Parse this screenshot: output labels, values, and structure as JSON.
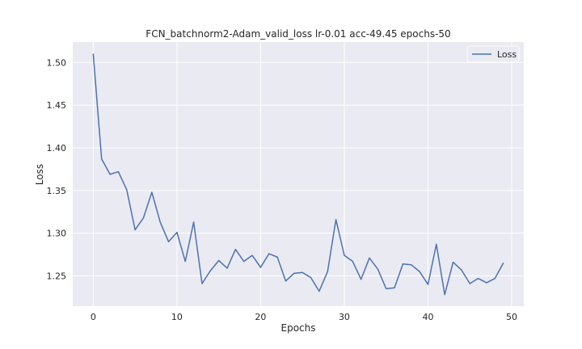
{
  "chart_data": {
    "type": "line",
    "title": "FCN_batchnorm2-Adam_valid_loss lr-0.01 acc-49.45 epochs-50",
    "xlabel": "Epochs",
    "ylabel": "Loss",
    "xlim": [
      -2.45,
      51.45
    ],
    "ylim": [
      1.2145,
      1.524
    ],
    "xticks": [
      0,
      10,
      20,
      30,
      40,
      50
    ],
    "yticks": [
      1.25,
      1.3,
      1.35,
      1.4,
      1.45,
      1.5
    ],
    "ytick_labels": [
      "1.25",
      "1.30",
      "1.35",
      "1.40",
      "1.45",
      "1.50"
    ],
    "grid": true,
    "legend_position": "top-right",
    "background": "#eaeaf2",
    "series": [
      {
        "name": "Loss",
        "color": "#4c72b0",
        "x": [
          0,
          1,
          2,
          3,
          4,
          5,
          6,
          7,
          8,
          9,
          10,
          11,
          12,
          13,
          14,
          15,
          16,
          17,
          18,
          19,
          20,
          21,
          22,
          23,
          24,
          25,
          26,
          27,
          28,
          29,
          30,
          31,
          32,
          33,
          34,
          35,
          36,
          37,
          38,
          39,
          40,
          41,
          42,
          43,
          44,
          45,
          46,
          47,
          48,
          49
        ],
        "values": [
          1.51,
          1.387,
          1.369,
          1.372,
          1.351,
          1.304,
          1.318,
          1.348,
          1.313,
          1.29,
          1.301,
          1.267,
          1.313,
          1.241,
          1.256,
          1.268,
          1.259,
          1.281,
          1.267,
          1.274,
          1.26,
          1.276,
          1.272,
          1.244,
          1.253,
          1.254,
          1.248,
          1.232,
          1.255,
          1.316,
          1.274,
          1.267,
          1.246,
          1.271,
          1.258,
          1.235,
          1.236,
          1.264,
          1.263,
          1.255,
          1.24,
          1.287,
          1.228,
          1.266,
          1.257,
          1.241,
          1.247,
          1.242,
          1.247,
          1.265
        ]
      }
    ]
  }
}
